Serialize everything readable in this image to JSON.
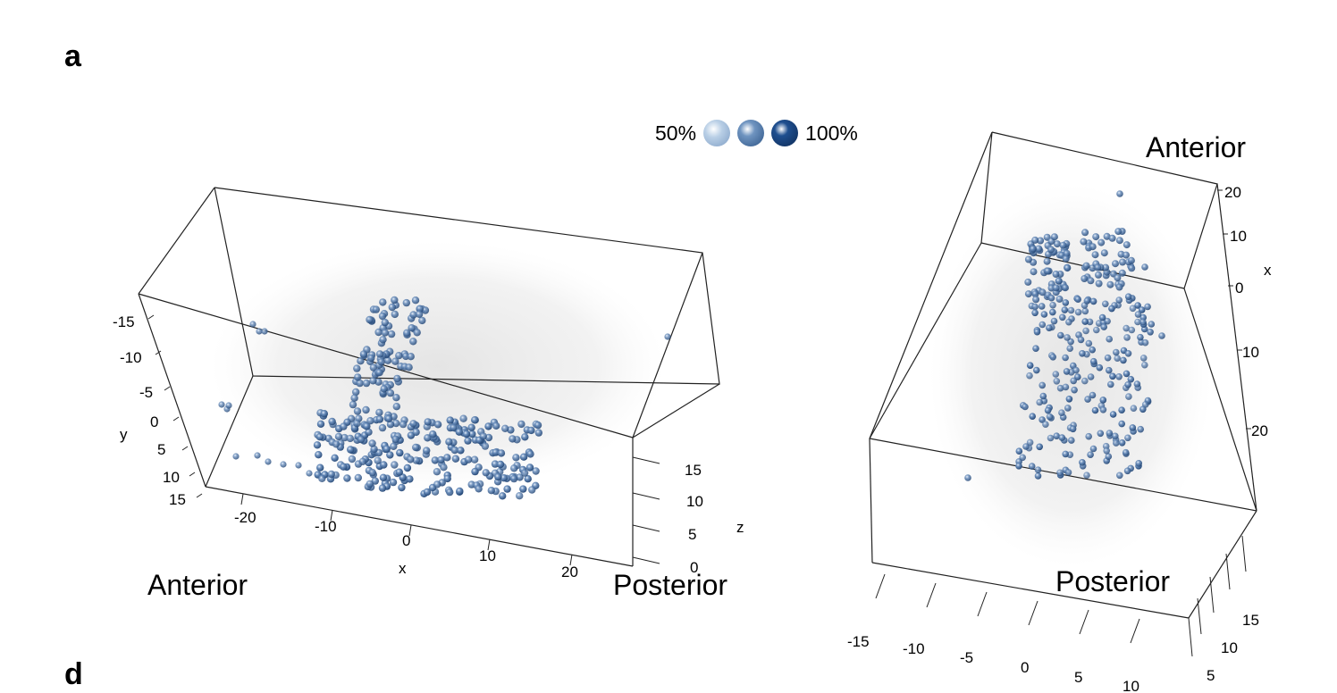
{
  "panel_labels": {
    "top": "a",
    "bottom": "d"
  },
  "legend": {
    "low_label": "50%",
    "high_label": "100%",
    "swatches": [
      "#b9cfe6",
      "#6f94c0",
      "#1f4f8f"
    ]
  },
  "colors": {
    "points": "#4f76a8",
    "points_dark": "#1f4f8f",
    "cloud": "#cfcfcf",
    "box": "#222222"
  },
  "chart_data": [
    {
      "type": "scatter",
      "view": "lateral",
      "title": "",
      "xlabel": "x",
      "ylabel": "y",
      "zlabel": "z",
      "x_ticks": [
        "-20",
        "-10",
        "0",
        "10",
        "20"
      ],
      "y_ticks": [
        "-15",
        "-10",
        "-5",
        "0",
        "5",
        "10",
        "15"
      ],
      "z_ticks": [
        "0",
        "5",
        "10",
        "15"
      ],
      "annotations": [
        "Anterior",
        "Posterior"
      ],
      "point_clusters": [
        {
          "x_range": [
            -9,
            -1
          ],
          "y_range": [
            -15,
            -3
          ],
          "z_value": 8
        },
        {
          "x_range": [
            -13,
            14
          ],
          "y_range": [
            1,
            9
          ],
          "z_value": 4
        }
      ]
    },
    {
      "type": "scatter",
      "view": "top",
      "title": "",
      "xlabel": "x",
      "x_ticks": [
        "20",
        "10",
        "0",
        "10",
        "20"
      ],
      "bottom_ticks": [
        "-15",
        "-10",
        "-5",
        "0",
        "5",
        "10"
      ],
      "right_ticks": [
        "15",
        "10",
        "5"
      ],
      "annotations": [
        "Anterior",
        "Posterior"
      ]
    }
  ]
}
